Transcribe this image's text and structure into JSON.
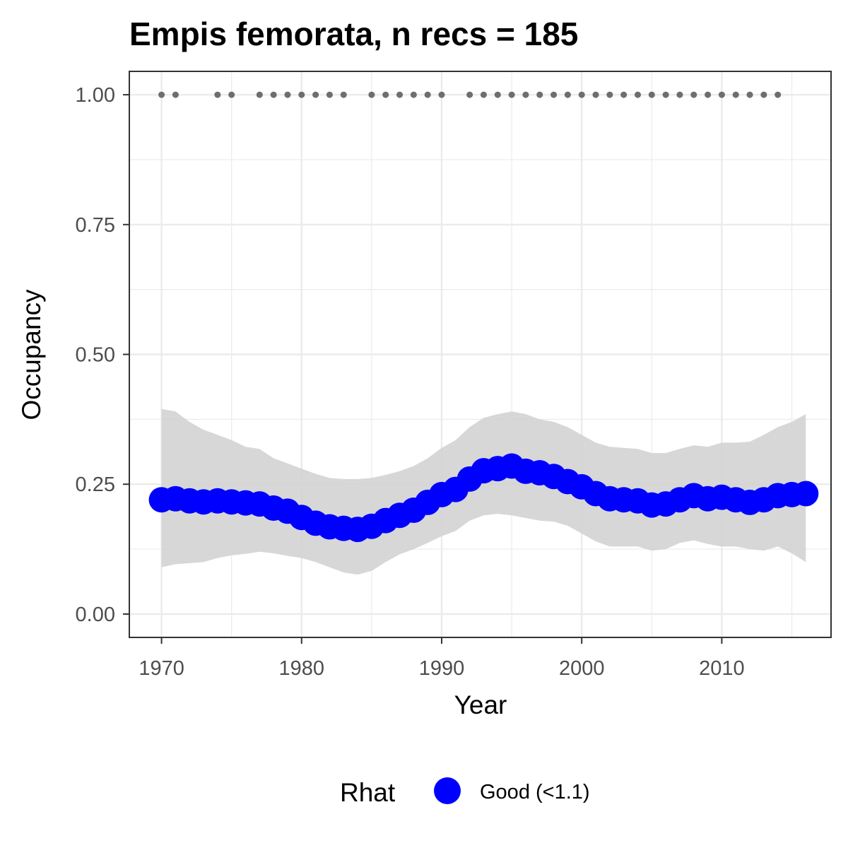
{
  "chart_data": {
    "type": "line",
    "title": "Empis femorata, n recs = 185",
    "xlabel": "Year",
    "ylabel": "Occupancy",
    "xlim": [
      1967.7,
      2017.8
    ],
    "ylim": [
      -0.045,
      1.045
    ],
    "x_ticks": [
      1970,
      1980,
      1990,
      2000,
      2010
    ],
    "x_tick_labels": [
      "1970",
      "1980",
      "1990",
      "2000",
      "2010"
    ],
    "y_ticks": [
      0,
      0.25,
      0.5,
      0.75,
      1.0
    ],
    "y_tick_labels": [
      "0.00",
      "0.25",
      "0.50",
      "0.75",
      "1.00"
    ],
    "grid": true,
    "legend": {
      "position": "bottom",
      "title": "Rhat",
      "entries": [
        {
          "label": "Good (<1.1)",
          "color": "#0000ff"
        }
      ]
    },
    "colors": {
      "series": "#0000ff",
      "ribbon": "#d3d3d3",
      "records": "#6e6e6e",
      "grid": "#ebebeb",
      "panel_border": "#333333"
    },
    "series": [
      {
        "name": "Good (<1.1)",
        "x": [
          1970,
          1971,
          1972,
          1973,
          1974,
          1975,
          1976,
          1977,
          1978,
          1979,
          1980,
          1981,
          1982,
          1983,
          1984,
          1985,
          1986,
          1987,
          1988,
          1989,
          1990,
          1991,
          1992,
          1993,
          1994,
          1995,
          1996,
          1997,
          1998,
          1999,
          2000,
          2001,
          2002,
          2003,
          2004,
          2005,
          2006,
          2007,
          2008,
          2009,
          2010,
          2011,
          2012,
          2013,
          2014,
          2015,
          2016
        ],
        "y": [
          0.22,
          0.222,
          0.218,
          0.216,
          0.218,
          0.216,
          0.214,
          0.212,
          0.204,
          0.198,
          0.186,
          0.175,
          0.168,
          0.165,
          0.163,
          0.169,
          0.18,
          0.19,
          0.2,
          0.215,
          0.23,
          0.24,
          0.26,
          0.276,
          0.28,
          0.285,
          0.275,
          0.272,
          0.265,
          0.255,
          0.245,
          0.232,
          0.222,
          0.22,
          0.218,
          0.21,
          0.212,
          0.22,
          0.228,
          0.222,
          0.225,
          0.22,
          0.215,
          0.22,
          0.228,
          0.23,
          0.232
        ],
        "lower": [
          0.09,
          0.096,
          0.098,
          0.1,
          0.108,
          0.113,
          0.116,
          0.12,
          0.117,
          0.112,
          0.108,
          0.1,
          0.09,
          0.08,
          0.076,
          0.083,
          0.1,
          0.115,
          0.125,
          0.137,
          0.15,
          0.16,
          0.18,
          0.19,
          0.193,
          0.19,
          0.185,
          0.18,
          0.178,
          0.17,
          0.155,
          0.14,
          0.13,
          0.13,
          0.13,
          0.122,
          0.125,
          0.137,
          0.142,
          0.135,
          0.13,
          0.13,
          0.125,
          0.122,
          0.13,
          0.117,
          0.1
        ],
        "upper": [
          0.395,
          0.39,
          0.37,
          0.355,
          0.345,
          0.335,
          0.322,
          0.318,
          0.3,
          0.29,
          0.28,
          0.27,
          0.262,
          0.26,
          0.26,
          0.262,
          0.268,
          0.275,
          0.285,
          0.3,
          0.32,
          0.335,
          0.36,
          0.378,
          0.385,
          0.39,
          0.385,
          0.375,
          0.37,
          0.36,
          0.345,
          0.33,
          0.322,
          0.32,
          0.318,
          0.31,
          0.31,
          0.318,
          0.325,
          0.322,
          0.33,
          0.33,
          0.332,
          0.345,
          0.36,
          0.37,
          0.385
        ]
      }
    ],
    "records": {
      "y": 1.0,
      "x": [
        1970,
        1971,
        1974,
        1975,
        1977,
        1978,
        1979,
        1980,
        1981,
        1982,
        1983,
        1985,
        1986,
        1987,
        1988,
        1989,
        1990,
        1992,
        1993,
        1994,
        1995,
        1996,
        1997,
        1998,
        1999,
        2000,
        2001,
        2002,
        2003,
        2004,
        2005,
        2006,
        2007,
        2008,
        2009,
        2010,
        2011,
        2012,
        2013,
        2014
      ]
    }
  }
}
